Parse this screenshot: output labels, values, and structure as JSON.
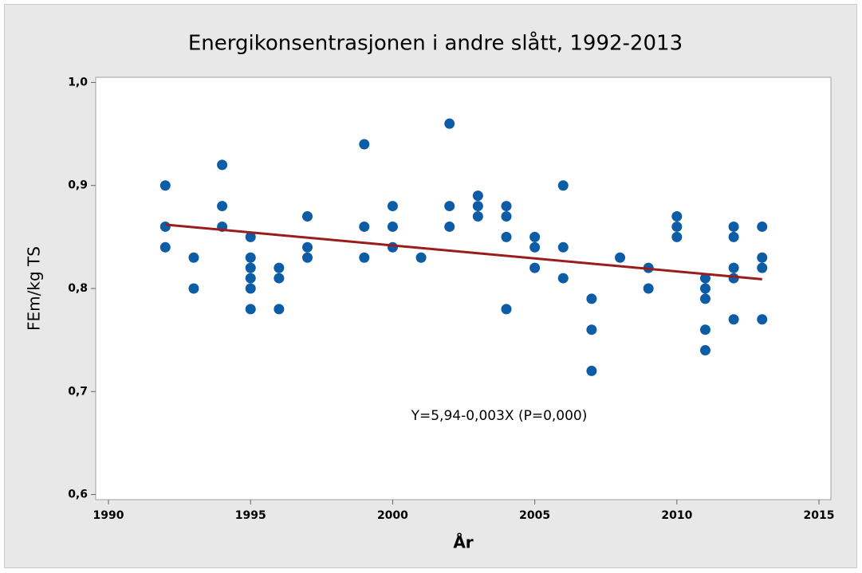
{
  "chart_data": {
    "type": "scatter",
    "title": "Energikonsentrasjonen i andre slått, 1992-2013",
    "x_label": "År",
    "y_label": "FEm/kg TS",
    "annotation": "Y=5,94-0,003X (P=0,000)",
    "xlim": [
      1989.55,
      2015.42
    ],
    "ylim": [
      0.595,
      1.005
    ],
    "xticks": [
      1990,
      1995,
      2000,
      2005,
      2010,
      2015
    ],
    "yticks": [
      {
        "value": 0.6,
        "label": "0,6"
      },
      {
        "value": 0.7,
        "label": "0,7"
      },
      {
        "value": 0.8,
        "label": "0,8"
      },
      {
        "value": 0.9,
        "label": "0,9"
      },
      {
        "value": 1.0,
        "label": "1,0"
      }
    ],
    "series": [
      {
        "color": "#0d5ca6",
        "x": [
          1992,
          1992,
          1992,
          1993,
          1993,
          1994,
          1994,
          1994,
          1995,
          1995,
          1995,
          1995,
          1995,
          1995,
          1996,
          1996,
          1996,
          1997,
          1997,
          1997,
          1999,
          1999,
          1999,
          2000,
          2000,
          2000,
          2001,
          2002,
          2002,
          2002,
          2003,
          2003,
          2003,
          2004,
          2004,
          2004,
          2004,
          2005,
          2005,
          2005,
          2006,
          2006,
          2006,
          2007,
          2007,
          2007,
          2008,
          2009,
          2009,
          2010,
          2010,
          2010,
          2011,
          2011,
          2011,
          2011,
          2011,
          2012,
          2012,
          2012,
          2012,
          2012,
          2013,
          2013,
          2013,
          2013
        ],
        "values": [
          0.9,
          0.86,
          0.84,
          0.83,
          0.8,
          0.92,
          0.88,
          0.86,
          0.85,
          0.83,
          0.82,
          0.81,
          0.8,
          0.78,
          0.82,
          0.81,
          0.78,
          0.87,
          0.84,
          0.83,
          0.94,
          0.86,
          0.83,
          0.88,
          0.86,
          0.84,
          0.83,
          0.96,
          0.88,
          0.86,
          0.89,
          0.88,
          0.87,
          0.88,
          0.87,
          0.85,
          0.78,
          0.85,
          0.84,
          0.82,
          0.9,
          0.84,
          0.81,
          0.79,
          0.76,
          0.72,
          0.83,
          0.82,
          0.8,
          0.87,
          0.86,
          0.85,
          0.81,
          0.8,
          0.79,
          0.76,
          0.74,
          0.86,
          0.85,
          0.82,
          0.81,
          0.77,
          0.86,
          0.83,
          0.82,
          0.77
        ]
      }
    ],
    "fit_line": {
      "color": "#9b1c1c",
      "x": [
        1992,
        2013
      ],
      "values": [
        0.862,
        0.809
      ]
    }
  }
}
